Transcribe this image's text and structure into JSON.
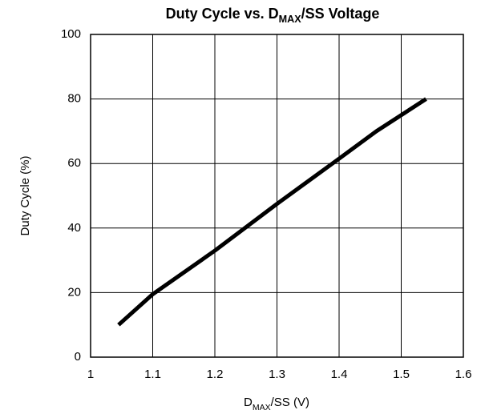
{
  "chart_data": {
    "type": "line",
    "title": [
      "Duty Cycle vs. D",
      "MAX",
      "/SS Voltage"
    ],
    "x_label": [
      "D",
      "MAX",
      "/SS (V)"
    ],
    "y_label": "Duty Cycle (%)",
    "x": [
      1.045,
      1.1,
      1.2,
      1.3,
      1.4,
      1.46,
      1.54
    ],
    "series": [
      {
        "name": "Duty Cycle",
        "color": "#000000",
        "values": [
          10,
          19.5,
          33,
          47.5,
          61.5,
          70,
          80
        ]
      }
    ],
    "xlim": [
      1,
      1.6
    ],
    "xticks": [
      1,
      1.1,
      1.2,
      1.3,
      1.4,
      1.5,
      1.6
    ],
    "ylim": [
      0,
      100
    ],
    "yticks": [
      0,
      20,
      40,
      60,
      80,
      100
    ],
    "grid": true
  }
}
